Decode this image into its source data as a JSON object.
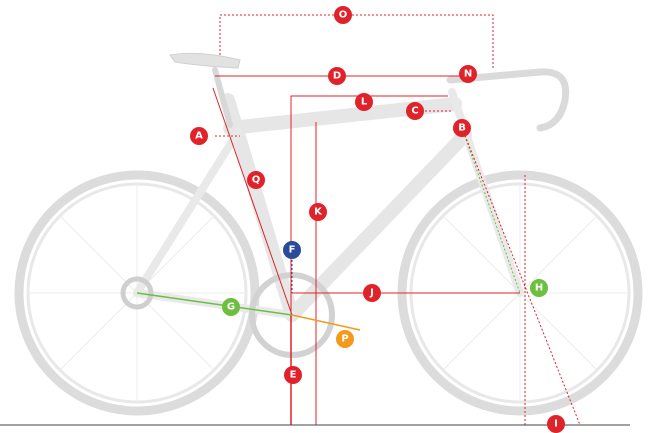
{
  "markers": [
    "O",
    "D",
    "N",
    "L",
    "C",
    "A",
    "B",
    "Q",
    "K",
    "F",
    "J",
    "H",
    "G",
    "P",
    "E",
    "I"
  ]
}
